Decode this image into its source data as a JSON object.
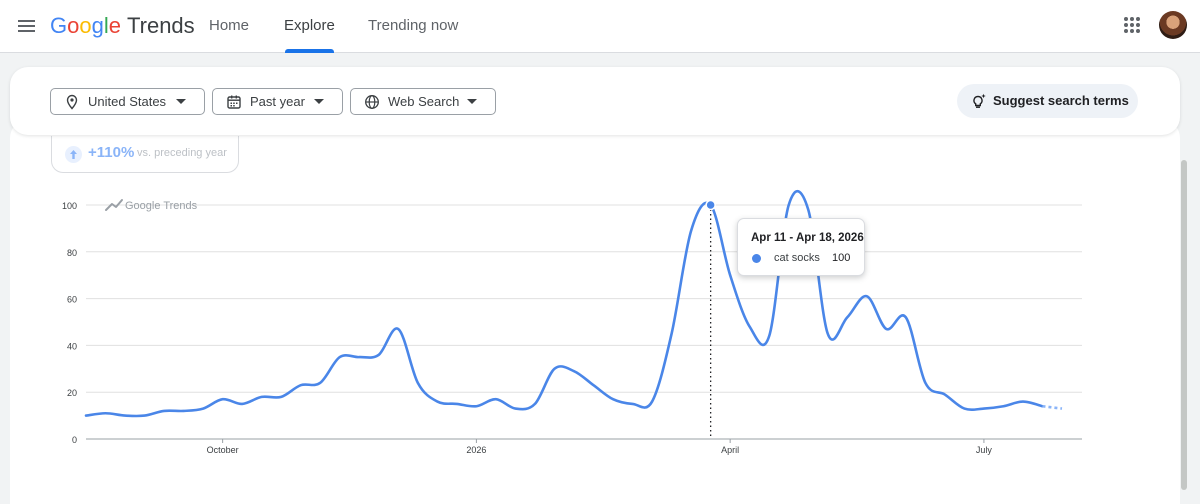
{
  "header": {
    "logo_letters": [
      "G",
      "o",
      "o",
      "g",
      "l",
      "e"
    ],
    "logo_product": "Trends",
    "nav": [
      "Home",
      "Explore",
      "Trending now"
    ],
    "active_nav": "Explore"
  },
  "filters": {
    "region": "United States",
    "time_range": "Past year",
    "property": "Web Search",
    "suggest_label": "Suggest search terms"
  },
  "change": {
    "value": "+110%",
    "label": "vs. preceding year"
  },
  "chart_data": {
    "type": "line",
    "watermark": "Google Trends",
    "y_ticks": [
      "0",
      "20",
      "40",
      "60",
      "80",
      "100"
    ],
    "ylim": [
      0,
      100
    ],
    "x_tick_labels": [
      "October",
      "2026",
      "April",
      "July"
    ],
    "x_tick_index": [
      7,
      20,
      33,
      46
    ],
    "series": [
      {
        "name": "cat socks",
        "color": "#4a86e8",
        "values": [
          10,
          11,
          10,
          10,
          12,
          12,
          13,
          17,
          15,
          18,
          18,
          23,
          24,
          35,
          35,
          36,
          47,
          24,
          16,
          15,
          14,
          17,
          13,
          15,
          30,
          29,
          23,
          17,
          15,
          16,
          45,
          89,
          100,
          70,
          48,
          44,
          100,
          98,
          45,
          52,
          61,
          47,
          52,
          24,
          19,
          13,
          13,
          14,
          16,
          14,
          13
        ],
        "partial_last_point": true
      }
    ],
    "grid": true,
    "highlight_index": 32
  },
  "tooltip": {
    "title": "Apr 11 - Apr 18, 2026",
    "series_name": "cat socks",
    "value": "100"
  },
  "colors": {
    "accent": "#1a73e8",
    "series": "#4a86e8"
  }
}
